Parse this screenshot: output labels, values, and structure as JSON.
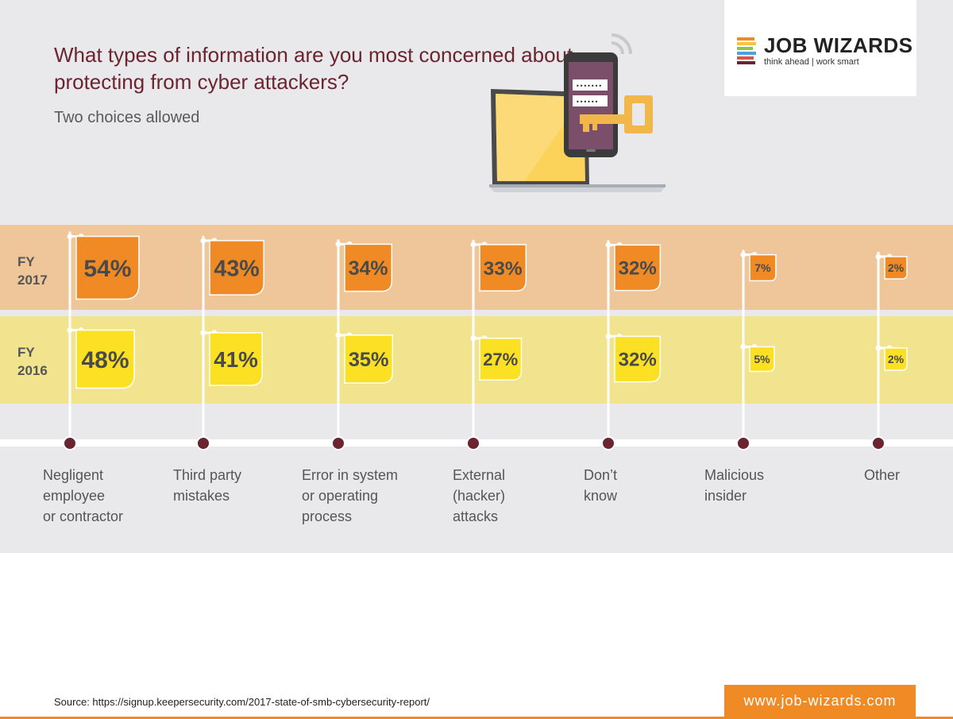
{
  "header": {
    "title": "What types of information are you most concerned about protecting from cyber attackers?",
    "subtitle": "Two choices allowed"
  },
  "logo": {
    "name": "JOB WIZARDS",
    "tagline": "think ahead | work smart",
    "stack_colors": [
      "#f08a24",
      "#f5c542",
      "#8dc63f",
      "#4aa3df",
      "#d9534f",
      "#6b2430"
    ]
  },
  "fy_labels": {
    "fy2017": "FY\n2017",
    "fy2016": "FY\n2016"
  },
  "chart_data": {
    "type": "bar",
    "title": "What types of information are you most concerned about protecting from cyber attackers?",
    "subtitle": "Two choices allowed",
    "categories": [
      "Negligent employee or contractor",
      "Third party mistakes",
      "Error in system or operating process",
      "External (hacker) attacks",
      "Don’t know",
      "Malicious insider",
      "Other"
    ],
    "category_lines": [
      [
        "Negligent",
        "employee",
        "or contractor"
      ],
      [
        "Third party",
        "mistakes"
      ],
      [
        "Error in system",
        "or operating",
        "process"
      ],
      [
        "External",
        "(hacker)",
        "attacks"
      ],
      [
        "Don’t",
        "know"
      ],
      [
        "Malicious",
        "insider"
      ],
      [
        "Other"
      ]
    ],
    "series": [
      {
        "name": "FY 2017",
        "values": [
          54,
          43,
          34,
          33,
          32,
          7,
          2
        ],
        "labels": [
          "54%",
          "43%",
          "34%",
          "33%",
          "32%",
          "7%",
          "2%"
        ],
        "color": "#f08a24"
      },
      {
        "name": "FY 2016",
        "values": [
          48,
          41,
          35,
          27,
          32,
          5,
          2
        ],
        "labels": [
          "48%",
          "41%",
          "35%",
          "27%",
          "32%",
          "5%",
          "2%"
        ],
        "color": "#fbe023"
      }
    ],
    "unit": "%"
  },
  "footer": {
    "source": "Source: https://signup.keepersecurity.com/2017-state-of-smb-cybersecurity-report/",
    "website": "www.job-wizards.com"
  }
}
